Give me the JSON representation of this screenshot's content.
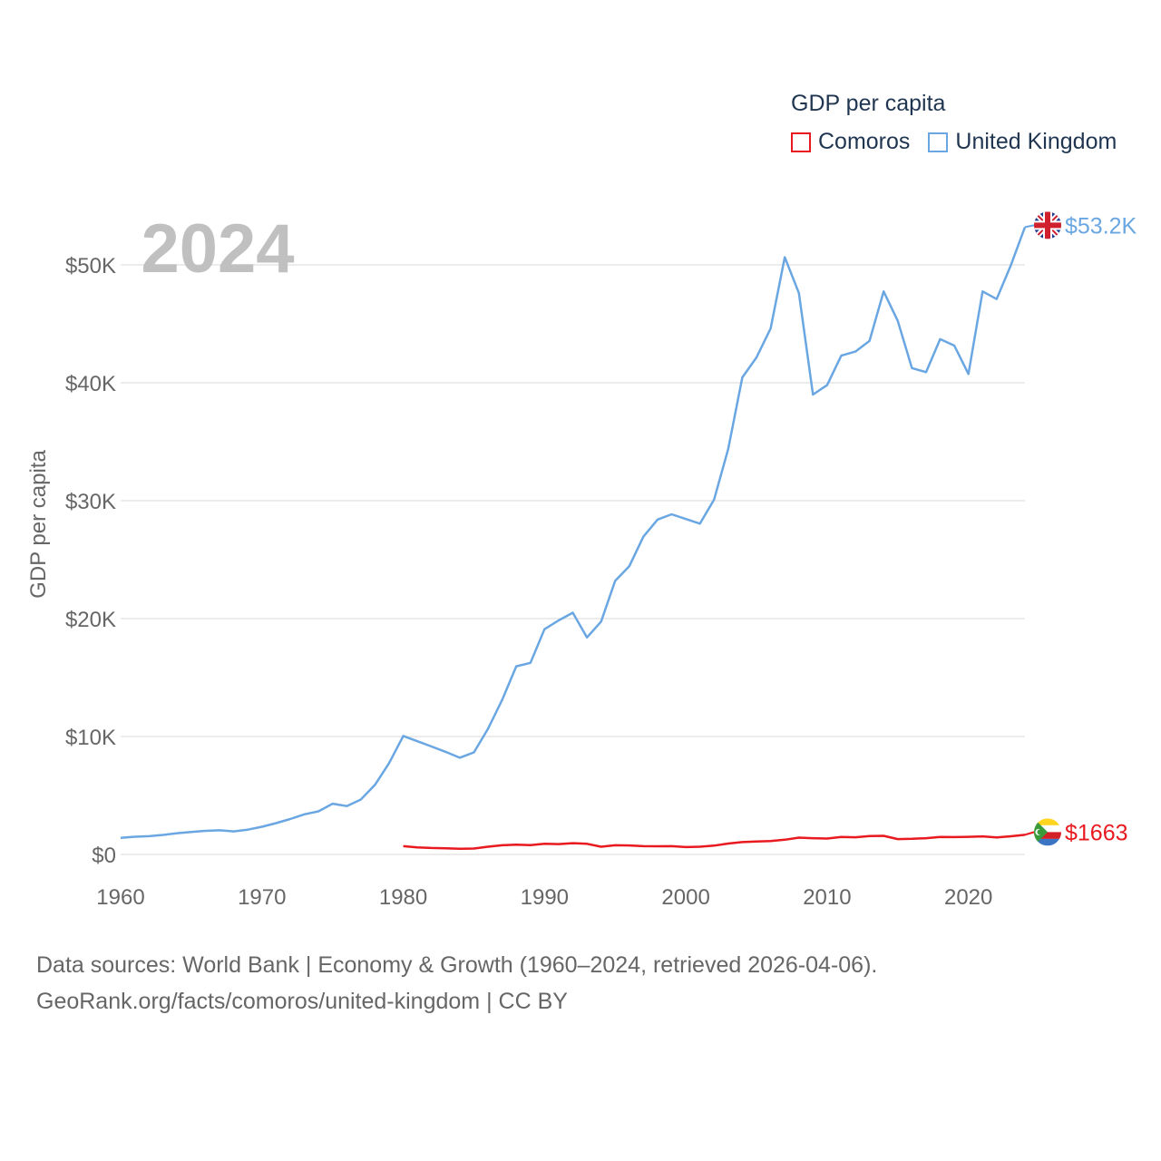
{
  "legend": {
    "title": "GDP per capita",
    "items": [
      {
        "label": "Comoros",
        "color": "#e8191f"
      },
      {
        "label": "United Kingdom",
        "color": "#6aa7e2"
      }
    ]
  },
  "footer": {
    "line1": "Data sources: World Bank | Economy & Growth (1960–2024, retrieved 2026-04-06).",
    "line2": "GeoRank.org/facts/comoros/united-kingdom | CC BY"
  },
  "chart_data": {
    "type": "line",
    "title": "",
    "year_label": "2024",
    "xlabel": "",
    "ylabel": "GDP per capita",
    "xlim": [
      1960,
      2024
    ],
    "ylim": [
      0,
      50000
    ],
    "x_ticks": [
      1960,
      1970,
      1980,
      1990,
      2000,
      2010,
      2020
    ],
    "y_ticks": [
      {
        "value": 0,
        "label": "$0"
      },
      {
        "value": 10000,
        "label": "$10K"
      },
      {
        "value": 20000,
        "label": "$20K"
      },
      {
        "value": 30000,
        "label": "$30K"
      },
      {
        "value": 40000,
        "label": "$40K"
      },
      {
        "value": 50000,
        "label": "$50K"
      }
    ],
    "grid": true,
    "series": [
      {
        "name": "United Kingdom",
        "color": "#6aa7e2",
        "end_label": "$53.2K",
        "flag_icon": "uk-flag-icon",
        "x": [
          1960,
          1961,
          1962,
          1963,
          1964,
          1965,
          1966,
          1967,
          1968,
          1969,
          1970,
          1971,
          1972,
          1973,
          1974,
          1975,
          1976,
          1977,
          1978,
          1979,
          1980,
          1981,
          1982,
          1983,
          1984,
          1985,
          1986,
          1987,
          1988,
          1989,
          1990,
          1991,
          1992,
          1993,
          1994,
          1995,
          1996,
          1997,
          1998,
          1999,
          2000,
          2001,
          2002,
          2003,
          2004,
          2005,
          2006,
          2007,
          2008,
          2009,
          2010,
          2011,
          2012,
          2013,
          2014,
          2015,
          2016,
          2017,
          2018,
          2019,
          2020,
          2021,
          2022,
          2023,
          2024
        ],
        "values": [
          1400,
          1500,
          1550,
          1650,
          1800,
          1900,
          2000,
          2050,
          1950,
          2100,
          2350,
          2650,
          3000,
          3400,
          3650,
          4300,
          4100,
          4650,
          5900,
          7750,
          10050,
          9600,
          9150,
          8700,
          8200,
          8650,
          10650,
          13100,
          15950,
          16250,
          19100,
          19850,
          20500,
          18400,
          19750,
          23200,
          24450,
          26950,
          28400,
          28850,
          28450,
          28050,
          30100,
          34400,
          40450,
          42150,
          44600,
          50650,
          47600,
          39000,
          39800,
          42300,
          42650,
          43550,
          47750,
          45250,
          41250,
          40900,
          43700,
          43150,
          40750,
          47750,
          47100,
          49950,
          53200
        ]
      },
      {
        "name": "Comoros",
        "color": "#e8191f",
        "end_label": "$1663",
        "flag_icon": "comoros-flag-icon",
        "x": [
          1980,
          1981,
          1982,
          1983,
          1984,
          1985,
          1986,
          1987,
          1988,
          1989,
          1990,
          1991,
          1992,
          1993,
          1994,
          1995,
          1996,
          1997,
          1998,
          1999,
          2000,
          2001,
          2002,
          2003,
          2004,
          2005,
          2006,
          2007,
          2008,
          2009,
          2010,
          2011,
          2012,
          2013,
          2014,
          2015,
          2016,
          2017,
          2018,
          2019,
          2020,
          2021,
          2022,
          2023,
          2024
        ],
        "values": [
          700,
          600,
          550,
          520,
          480,
          500,
          650,
          780,
          820,
          790,
          900,
          880,
          950,
          900,
          650,
          780,
          760,
          700,
          690,
          700,
          620,
          650,
          750,
          920,
          1050,
          1100,
          1130,
          1250,
          1420,
          1380,
          1350,
          1480,
          1450,
          1560,
          1580,
          1300,
          1320,
          1380,
          1480,
          1470,
          1490,
          1530,
          1440,
          1540,
          1663
        ]
      }
    ]
  }
}
